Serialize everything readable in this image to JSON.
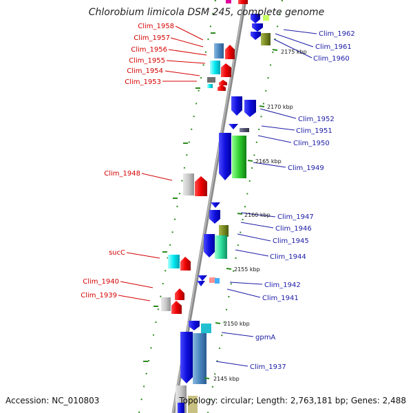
{
  "title": "Chlorobium limicola DSM 245, complete genome",
  "accession": "Accession: NC_010803",
  "summary": "Topology: circular; Length: 2,763,181 bp; Genes: 2,488",
  "ticks": [
    "2175 kbp",
    "2170 kbp",
    "2165 kbp",
    "2160 kbp",
    "2155 kbp",
    "2150 kbp",
    "2145 kbp"
  ],
  "left_labels": [
    "Clim_1958",
    "Clim_1957",
    "Clim_1956",
    "Clim_1955",
    "Clim_1954",
    "Clim_1953",
    "Clim_1948",
    "sucC",
    "Clim_1940",
    "Clim_1939"
  ],
  "right_labels": [
    "Clim_1962",
    "Clim_1961",
    "Clim_1960",
    "Clim_1952",
    "Clim_1951",
    "Clim_1950",
    "Clim_1949",
    "Clim_1947",
    "Clim_1946",
    "Clim_1945",
    "Clim_1944",
    "Clim_1942",
    "Clim_1941",
    "gpmA",
    "Clim_1937"
  ],
  "colors": {
    "forward_gene": "#ee0000",
    "reverse_gene": "#1010e0",
    "backbone": "#8a8a8a",
    "tick_dots": "#2a8a1a",
    "label_red": "#d40000",
    "label_blue": "#1a1aa6"
  }
}
